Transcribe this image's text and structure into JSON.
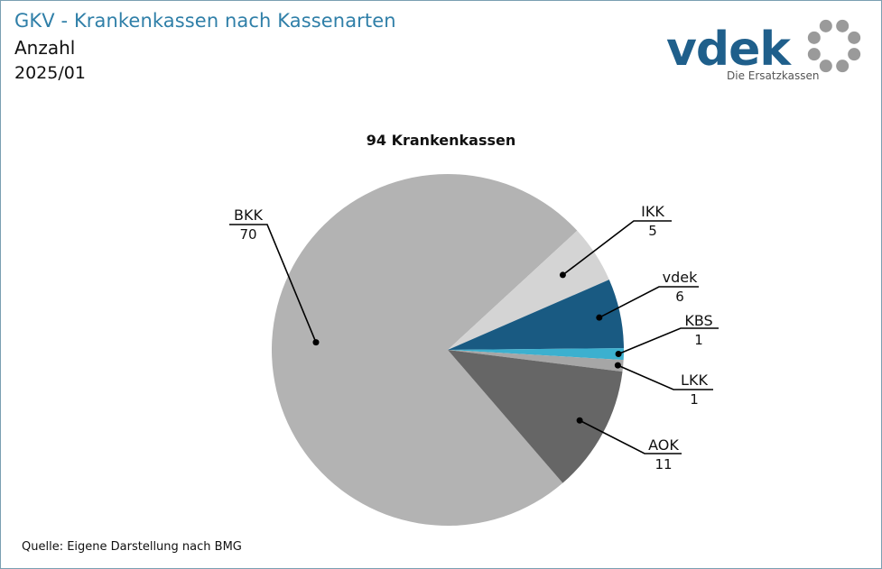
{
  "header": {
    "title": "GKV - Krankenkassen nach Kassenarten",
    "subtitle": "Anzahl",
    "period": "2025/01"
  },
  "logo": {
    "brand": "vdek",
    "tagline": "Die Ersatzkassen",
    "brand_color": "#1f5f8b",
    "ring_color": "#9a9a9a"
  },
  "footer": {
    "source": "Quelle: Eigene Darstellung nach BMG"
  },
  "chart_data": {
    "type": "pie",
    "title": "94 Krankenkassen",
    "slices": [
      {
        "label": "BKK",
        "value": 70,
        "color": "#b3b3b3"
      },
      {
        "label": "IKK",
        "value": 5,
        "color": "#d4d4d4"
      },
      {
        "label": "vdek",
        "value": 6,
        "color": "#195a82"
      },
      {
        "label": "KBS",
        "value": 1,
        "color": "#3cb0cf"
      },
      {
        "label": "LKK",
        "value": 1,
        "color": "#a6a6a6"
      },
      {
        "label": "AOK",
        "value": 11,
        "color": "#666666"
      }
    ],
    "label_style": "callout-lines"
  }
}
